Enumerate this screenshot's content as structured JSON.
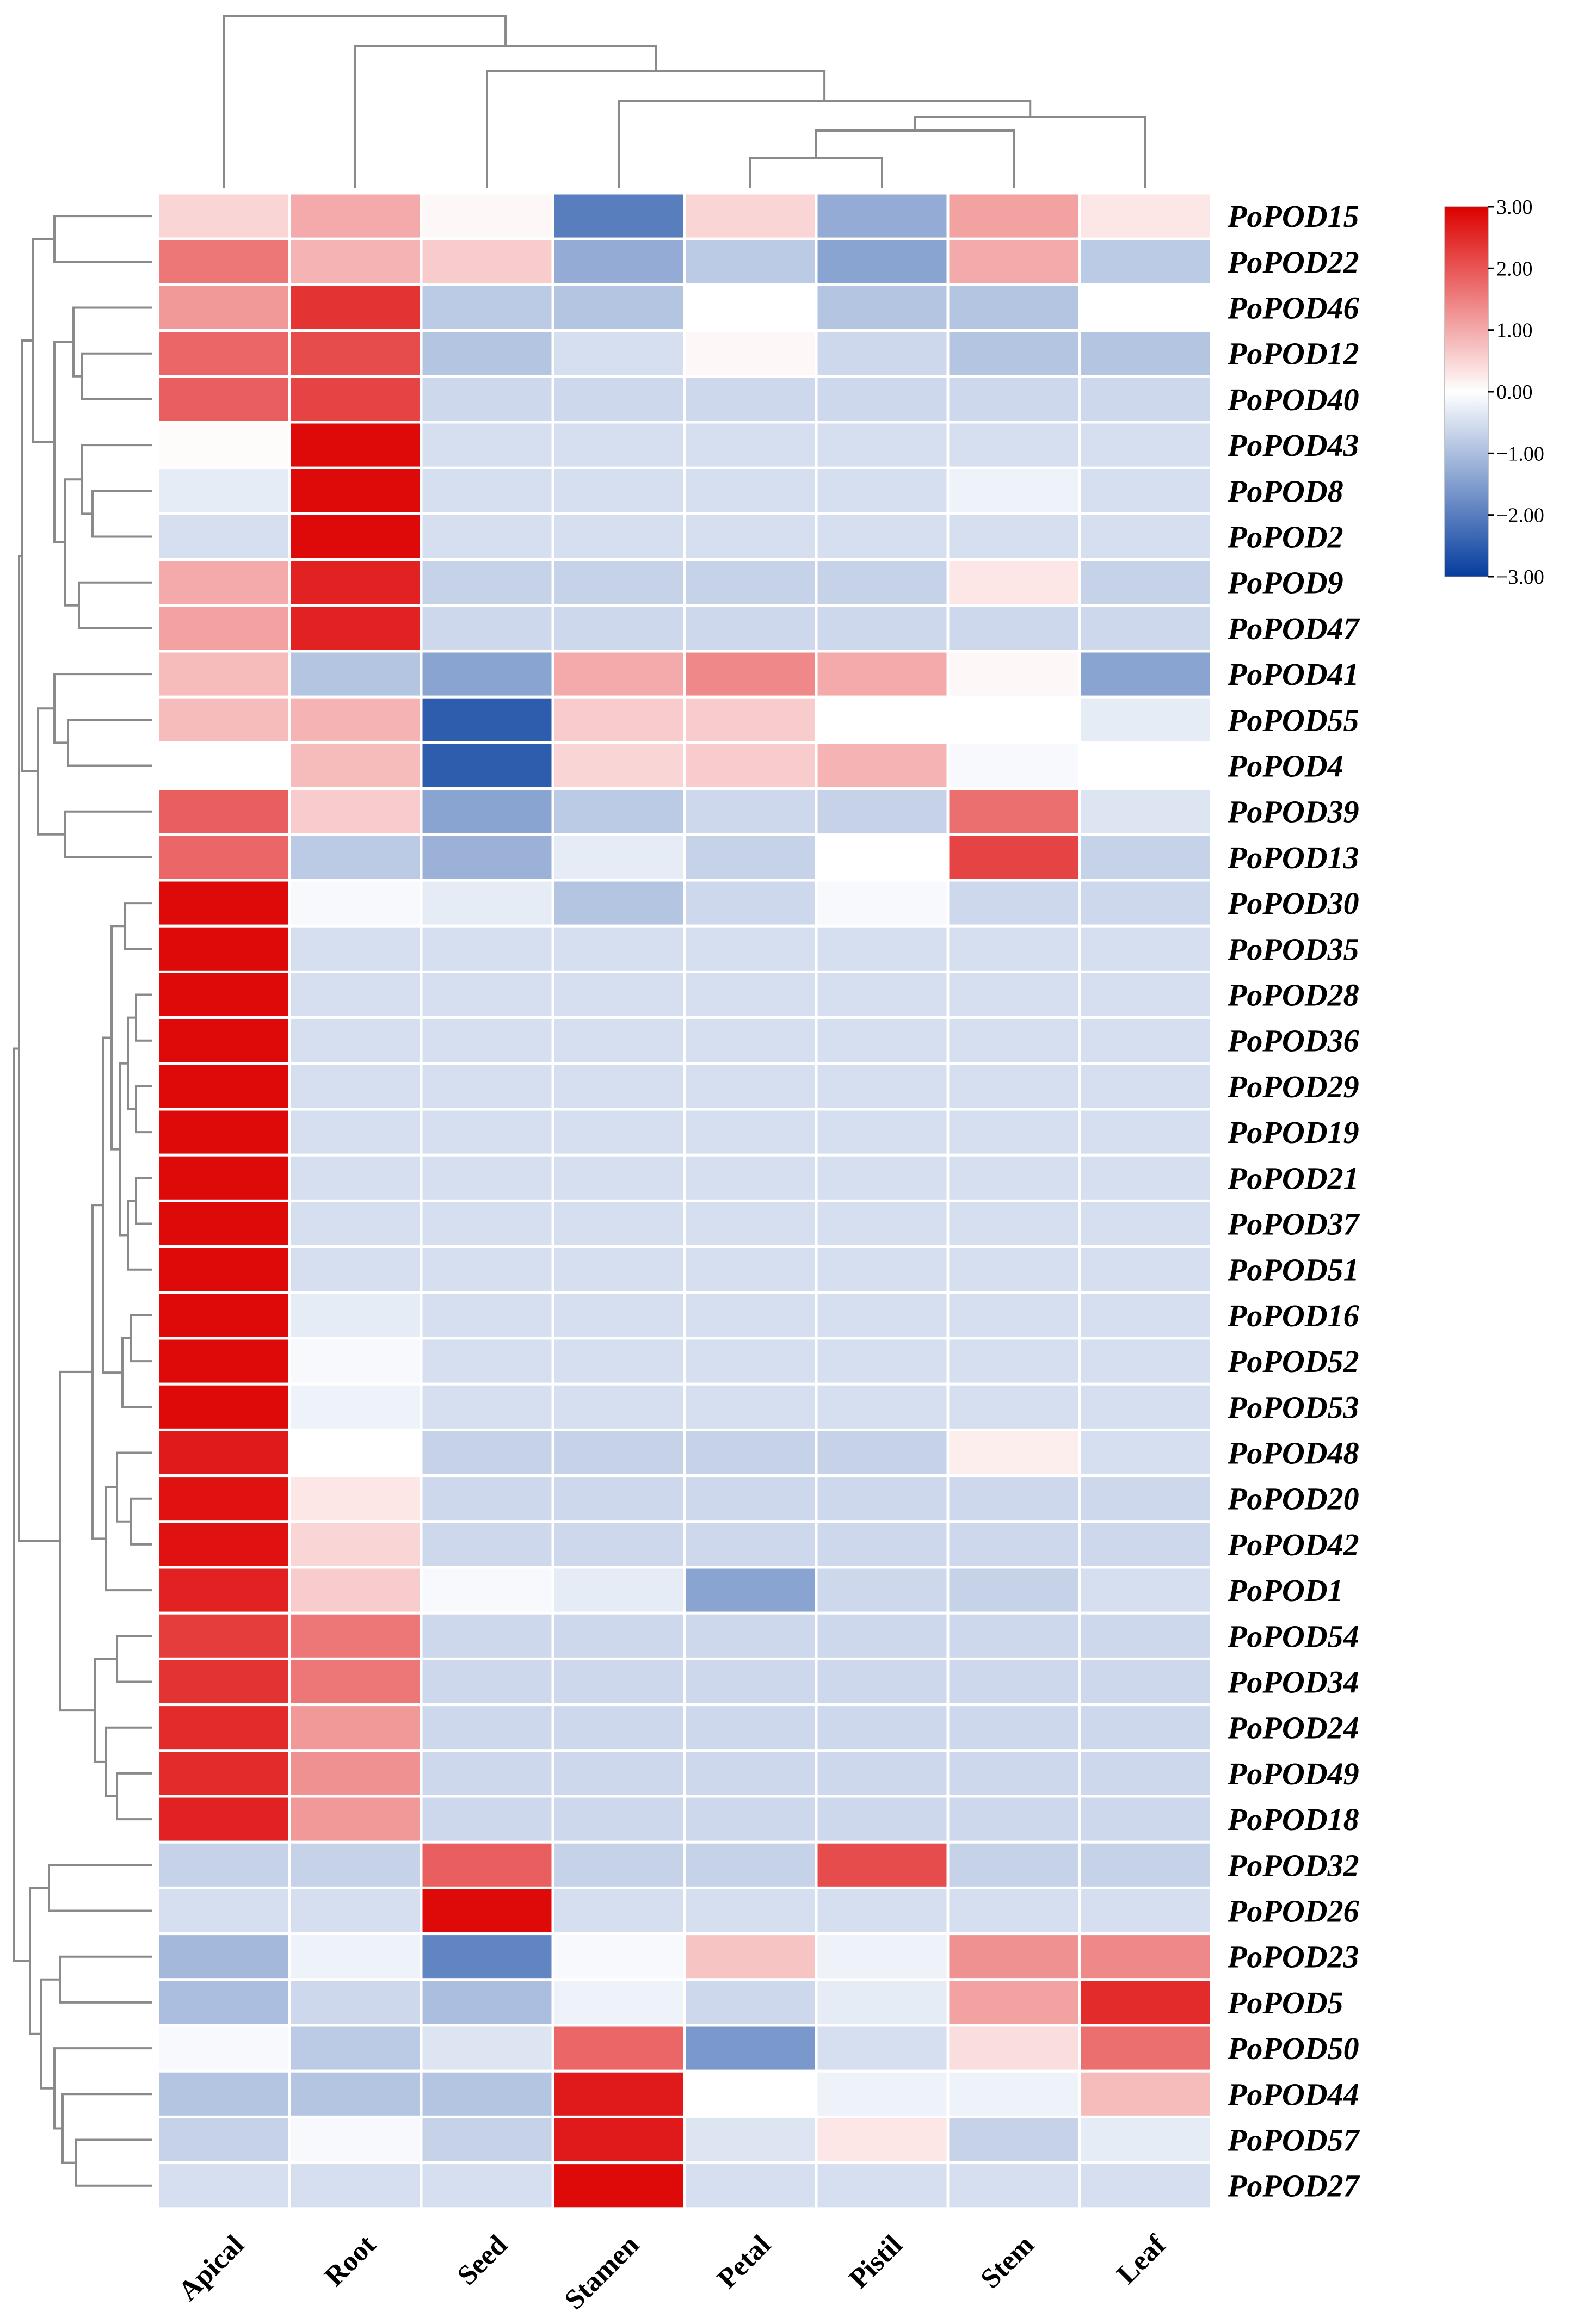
{
  "chart_data": {
    "type": "heatmap",
    "title": "",
    "columns": [
      "Apical",
      "Root",
      "Seed",
      "Stamen",
      "Petal",
      "Pistil",
      "Stem",
      "Leaf"
    ],
    "rows": [
      "PoPOD15",
      "PoPOD22",
      "PoPOD46",
      "PoPOD12",
      "PoPOD40",
      "PoPOD43",
      "PoPOD8",
      "PoPOD2",
      "PoPOD9",
      "PoPOD47",
      "PoPOD41",
      "PoPOD55",
      "PoPOD4",
      "PoPOD39",
      "PoPOD13",
      "PoPOD30",
      "PoPOD35",
      "PoPOD28",
      "PoPOD36",
      "PoPOD29",
      "PoPOD19",
      "PoPOD21",
      "PoPOD37",
      "PoPOD51",
      "PoPOD16",
      "PoPOD52",
      "PoPOD53",
      "PoPOD48",
      "PoPOD20",
      "PoPOD42",
      "PoPOD1",
      "PoPOD54",
      "PoPOD34",
      "PoPOD24",
      "PoPOD49",
      "PoPOD18",
      "PoPOD32",
      "PoPOD26",
      "PoPOD23",
      "PoPOD5",
      "PoPOD50",
      "PoPOD44",
      "PoPOD57",
      "PoPOD27"
    ],
    "values": [
      [
        0.5,
        1.0,
        0.1,
        -2.0,
        0.5,
        -1.3,
        1.1,
        0.3
      ],
      [
        1.6,
        0.9,
        0.6,
        -1.3,
        -0.8,
        -1.4,
        1.0,
        -0.8
      ],
      [
        1.2,
        2.4,
        -0.8,
        -0.9,
        0.0,
        -0.9,
        -0.9,
        0.0
      ],
      [
        1.8,
        2.1,
        -0.9,
        -0.5,
        0.1,
        -0.6,
        -0.9,
        -0.9
      ],
      [
        1.9,
        2.2,
        -0.6,
        -0.6,
        -0.6,
        -0.6,
        -0.6,
        -0.6
      ],
      [
        0.05,
        2.9,
        -0.5,
        -0.5,
        -0.5,
        -0.5,
        -0.5,
        -0.5
      ],
      [
        -0.3,
        2.9,
        -0.5,
        -0.5,
        -0.5,
        -0.5,
        -0.2,
        -0.5
      ],
      [
        -0.5,
        2.9,
        -0.5,
        -0.5,
        -0.5,
        -0.5,
        -0.5,
        -0.5
      ],
      [
        1.0,
        2.6,
        -0.7,
        -0.7,
        -0.7,
        -0.7,
        0.3,
        -0.7
      ],
      [
        1.1,
        2.6,
        -0.6,
        -0.6,
        -0.6,
        -0.6,
        -0.6,
        -0.6
      ],
      [
        0.8,
        -0.9,
        -1.4,
        1.0,
        1.4,
        1.0,
        0.1,
        -1.4
      ],
      [
        0.8,
        0.9,
        -2.5,
        0.6,
        0.6,
        0.0,
        0.0,
        -0.3
      ],
      [
        0.0,
        0.8,
        -2.5,
        0.5,
        0.6,
        0.9,
        -0.1,
        0.0
      ],
      [
        1.9,
        0.6,
        -1.4,
        -0.8,
        -0.6,
        -0.7,
        1.7,
        -0.4
      ],
      [
        1.8,
        -0.8,
        -1.2,
        -0.3,
        -0.7,
        0.0,
        2.2,
        -0.7
      ],
      [
        2.9,
        -0.1,
        -0.3,
        -0.9,
        -0.6,
        -0.1,
        -0.6,
        -0.6
      ],
      [
        2.9,
        -0.5,
        -0.5,
        -0.5,
        -0.5,
        -0.5,
        -0.5,
        -0.5
      ],
      [
        2.9,
        -0.5,
        -0.5,
        -0.5,
        -0.5,
        -0.5,
        -0.5,
        -0.5
      ],
      [
        2.9,
        -0.5,
        -0.5,
        -0.5,
        -0.5,
        -0.5,
        -0.5,
        -0.5
      ],
      [
        2.9,
        -0.5,
        -0.5,
        -0.5,
        -0.5,
        -0.5,
        -0.5,
        -0.5
      ],
      [
        2.9,
        -0.5,
        -0.5,
        -0.5,
        -0.5,
        -0.5,
        -0.5,
        -0.5
      ],
      [
        2.9,
        -0.5,
        -0.5,
        -0.5,
        -0.5,
        -0.5,
        -0.5,
        -0.5
      ],
      [
        2.9,
        -0.5,
        -0.5,
        -0.5,
        -0.5,
        -0.5,
        -0.5,
        -0.5
      ],
      [
        2.9,
        -0.5,
        -0.5,
        -0.5,
        -0.5,
        -0.5,
        -0.5,
        -0.5
      ],
      [
        2.9,
        -0.3,
        -0.5,
        -0.5,
        -0.5,
        -0.5,
        -0.5,
        -0.5
      ],
      [
        2.9,
        -0.1,
        -0.5,
        -0.5,
        -0.5,
        -0.5,
        -0.5,
        -0.5
      ],
      [
        2.9,
        -0.2,
        -0.5,
        -0.5,
        -0.5,
        -0.5,
        -0.5,
        -0.5
      ],
      [
        2.7,
        0.0,
        -0.7,
        -0.7,
        -0.7,
        -0.7,
        0.2,
        -0.5
      ],
      [
        2.8,
        0.3,
        -0.6,
        -0.6,
        -0.6,
        -0.6,
        -0.6,
        -0.6
      ],
      [
        2.8,
        0.5,
        -0.6,
        -0.6,
        -0.6,
        -0.6,
        -0.6,
        -0.6
      ],
      [
        2.6,
        0.6,
        -0.1,
        -0.3,
        -1.4,
        -0.6,
        -0.7,
        -0.5
      ],
      [
        2.3,
        1.6,
        -0.6,
        -0.6,
        -0.6,
        -0.6,
        -0.6,
        -0.6
      ],
      [
        2.4,
        1.6,
        -0.6,
        -0.6,
        -0.6,
        -0.6,
        -0.6,
        -0.6
      ],
      [
        2.5,
        1.2,
        -0.6,
        -0.6,
        -0.6,
        -0.6,
        -0.6,
        -0.6
      ],
      [
        2.5,
        1.3,
        -0.6,
        -0.6,
        -0.6,
        -0.6,
        -0.6,
        -0.6
      ],
      [
        2.6,
        1.2,
        -0.6,
        -0.6,
        -0.6,
        -0.6,
        -0.6,
        -0.6
      ],
      [
        -0.7,
        -0.7,
        1.9,
        -0.7,
        -0.7,
        2.1,
        -0.7,
        -0.7
      ],
      [
        -0.5,
        -0.5,
        2.9,
        -0.5,
        -0.5,
        -0.5,
        -0.5,
        -0.5
      ],
      [
        -1.1,
        -0.2,
        -1.9,
        -0.1,
        0.7,
        -0.2,
        1.3,
        1.4
      ],
      [
        -1.0,
        -0.6,
        -1.0,
        -0.2,
        -0.6,
        -0.3,
        1.1,
        2.5
      ],
      [
        -0.1,
        -0.8,
        -0.4,
        1.8,
        -1.6,
        -0.5,
        0.4,
        1.7
      ],
      [
        -0.9,
        -0.9,
        -0.9,
        2.7,
        0.0,
        -0.2,
        -0.2,
        0.8
      ],
      [
        -0.7,
        -0.1,
        -0.7,
        2.7,
        -0.4,
        0.3,
        -0.7,
        -0.3
      ],
      [
        -0.5,
        -0.5,
        -0.5,
        2.9,
        -0.5,
        -0.5,
        -0.5,
        -0.5
      ]
    ],
    "colorbar": {
      "range": [
        -3,
        3
      ],
      "ticks": [
        "3.00",
        "2.00",
        "1.00",
        "0.00",
        "−1.00",
        "−2.00",
        "−3.00"
      ],
      "colors": [
        "#053d9e",
        "#ffffff",
        "#dd0000"
      ]
    },
    "row_dendrogram": true,
    "column_dendrogram": true
  }
}
